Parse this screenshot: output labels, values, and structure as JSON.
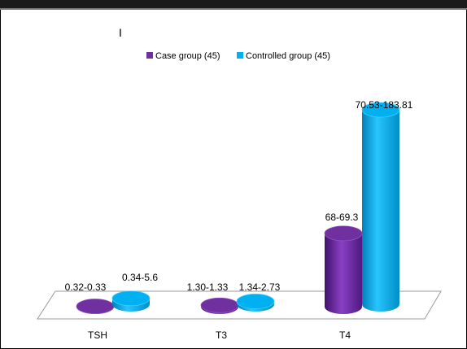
{
  "chart_data": {
    "type": "bar",
    "title": "I",
    "categories": [
      "TSH",
      "T3",
      "T4"
    ],
    "series": [
      {
        "name": "Case group (45)",
        "color": "#7030A0",
        "values": [
          0.33,
          1.33,
          69.3
        ],
        "labels": [
          "0.32-0.33",
          "1.30-1.33",
          "68-69.3"
        ]
      },
      {
        "name": "Controlled group (45)",
        "color": "#00B0F0",
        "values": [
          5.6,
          2.73,
          183.81
        ],
        "labels": [
          "0.34-5.6",
          "1.34-2.73",
          "70.53-183.81"
        ]
      }
    ],
    "ylim": [
      0,
      200
    ],
    "grid": false,
    "legend": "top-center"
  }
}
